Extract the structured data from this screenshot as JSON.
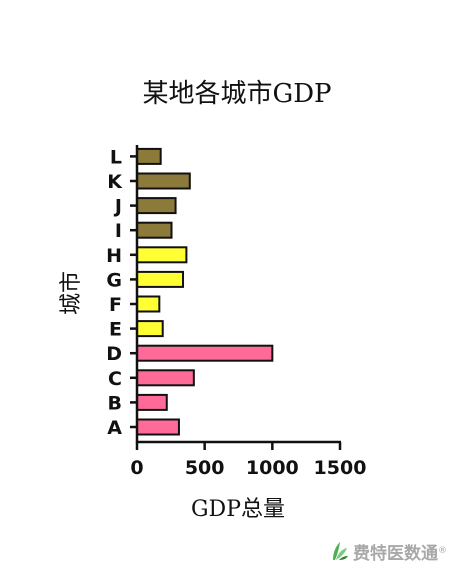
{
  "chart_data": {
    "type": "bar",
    "orientation": "horizontal",
    "title": "某地各城市GDP",
    "xlabel": "GDP总量",
    "ylabel": "城市",
    "categories": [
      "A",
      "B",
      "C",
      "D",
      "E",
      "F",
      "G",
      "H",
      "I",
      "J",
      "K",
      "L"
    ],
    "values": [
      310,
      220,
      420,
      1000,
      190,
      165,
      340,
      365,
      255,
      285,
      390,
      175
    ],
    "bar_colors": [
      "#ff6b99",
      "#ff6b99",
      "#ff6b99",
      "#ff6b99",
      "#ffff33",
      "#ffff33",
      "#ffff33",
      "#ffff33",
      "#8b7a3a",
      "#8b7a3a",
      "#8b7a3a",
      "#8b7a3a"
    ],
    "xlim": [
      0,
      1500
    ],
    "xticks": [
      0,
      500,
      1000,
      1500
    ],
    "grid": false,
    "legend": "none"
  },
  "watermark": {
    "text": "费特医数通",
    "symbol": "®",
    "icon": "leaf-logo-icon",
    "color": "#a8a8a8"
  }
}
